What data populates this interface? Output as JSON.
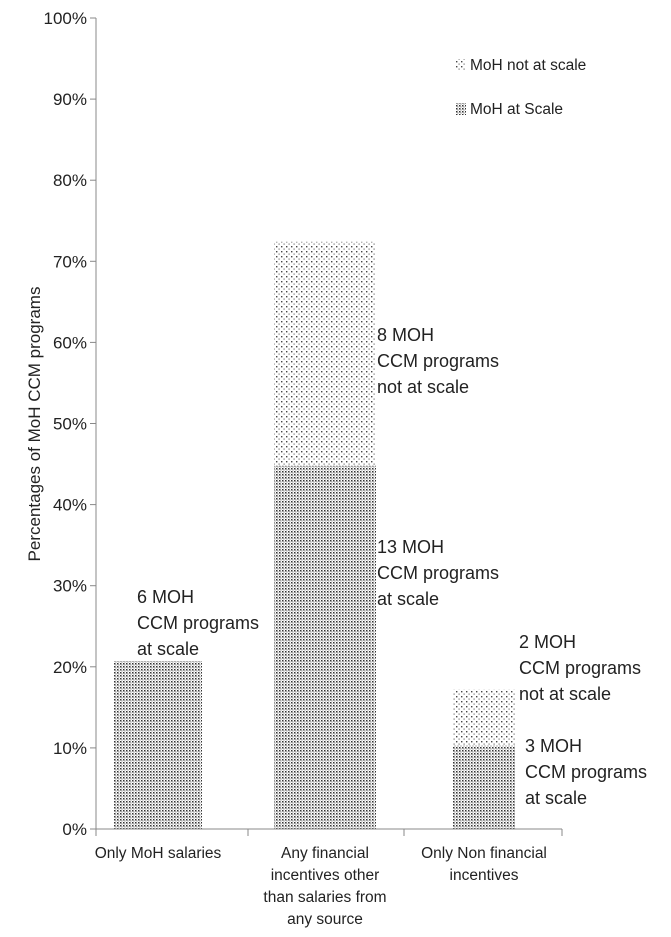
{
  "chart_data": {
    "type": "bar",
    "stacked": true,
    "title": "",
    "xlabel": "",
    "ylabel": "Percentages  of MoH CCM programs",
    "ylim": [
      0,
      100
    ],
    "yticks": [
      "0%",
      "10%",
      "20%",
      "30%",
      "40%",
      "50%",
      "60%",
      "70%",
      "80%",
      "90%",
      "100%"
    ],
    "categories": [
      [
        "Only MoH salaries"
      ],
      [
        "Any financial",
        "incentives other",
        "than salaries from",
        "any source"
      ],
      [
        "Only Non financial",
        "incentives"
      ]
    ],
    "series": [
      {
        "name": "MoH at Scale",
        "pattern": "dense-dots",
        "values": [
          20.7,
          44.8,
          10.3
        ]
      },
      {
        "name": "MoH not at scale",
        "pattern": "sparse-dots",
        "values": [
          0,
          27.6,
          6.9
        ]
      }
    ],
    "legend_position": "top-right",
    "grid": false,
    "annotations": [
      {
        "category_index": 0,
        "lines": [
          "6 MOH",
          "CCM programs",
          "at scale"
        ]
      },
      {
        "category_index": 1,
        "lines": [
          "8 MOH",
          "CCM programs",
          "not at scale"
        ]
      },
      {
        "category_index": 1,
        "lines": [
          "13 MOH",
          "CCM programs",
          "at scale"
        ]
      },
      {
        "category_index": 2,
        "lines": [
          "2 MOH",
          "CCM programs",
          "not at scale"
        ]
      },
      {
        "category_index": 2,
        "lines": [
          "3 MOH",
          "CCM programs",
          "at scale"
        ]
      }
    ]
  }
}
